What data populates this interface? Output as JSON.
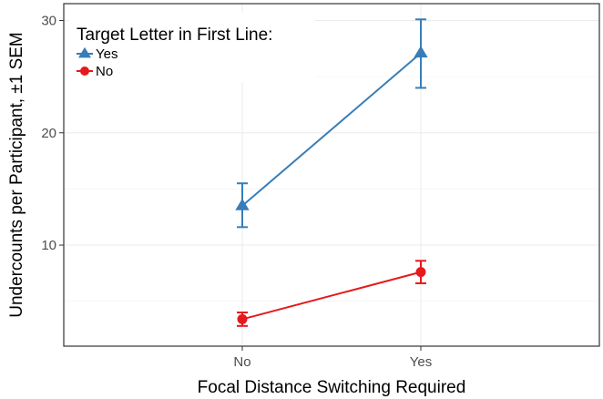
{
  "chart_data": {
    "type": "line",
    "xlabel": "Focal Distance Switching Required",
    "ylabel": "Undercounts per Participant, ±1 SEM",
    "categories": [
      "No",
      "Yes"
    ],
    "ylim": [
      1,
      31.5
    ],
    "yticks": [
      10,
      20,
      30
    ],
    "grid": true,
    "legend": {
      "title": "Target Letter in First Line:",
      "position": "top-left"
    },
    "series": [
      {
        "name": "Yes",
        "color": "#377eb8",
        "marker": "triangle",
        "values": [
          13.5,
          27.1
        ],
        "error_low": [
          11.6,
          24.0
        ],
        "error_high": [
          15.5,
          30.1
        ]
      },
      {
        "name": "No",
        "color": "#e41a1c",
        "marker": "circle",
        "values": [
          3.4,
          7.6
        ],
        "error_low": [
          2.8,
          6.6
        ],
        "error_high": [
          4.0,
          8.6
        ]
      }
    ]
  }
}
